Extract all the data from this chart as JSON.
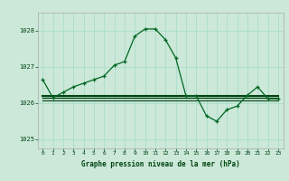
{
  "title": "Graphe pression niveau de la mer (hPa)",
  "background_color": "#cbe8d8",
  "grid_color": "#aaddcc",
  "line_color_main": "#006622",
  "line_color_flat": "#004411",
  "xlim": [
    -0.5,
    23.5
  ],
  "ylim": [
    1024.75,
    1028.5
  ],
  "yticks": [
    1025,
    1026,
    1027,
    1028
  ],
  "xticks": [
    0,
    1,
    2,
    3,
    4,
    5,
    6,
    7,
    8,
    9,
    10,
    11,
    12,
    13,
    14,
    15,
    16,
    17,
    18,
    19,
    20,
    21,
    22,
    23
  ],
  "main_series": [
    1026.65,
    1026.15,
    1026.3,
    1026.45,
    1026.55,
    1026.65,
    1026.75,
    1027.05,
    1027.15,
    1027.85,
    1028.05,
    1028.05,
    1027.75,
    1027.25,
    1026.2,
    1026.2,
    1025.65,
    1025.5,
    1025.82,
    1025.92,
    1026.22,
    1026.45,
    1026.12,
    1026.12
  ],
  "flat_series1": [
    1026.2,
    1026.2,
    1026.2,
    1026.2,
    1026.2,
    1026.2,
    1026.2,
    1026.2,
    1026.2,
    1026.2,
    1026.2,
    1026.2,
    1026.2,
    1026.2,
    1026.2,
    1026.2,
    1026.2,
    1026.2,
    1026.2,
    1026.2,
    1026.2,
    1026.2,
    1026.2,
    1026.2
  ],
  "flat_series2": [
    1026.15,
    1026.15,
    1026.15,
    1026.15,
    1026.15,
    1026.15,
    1026.15,
    1026.15,
    1026.15,
    1026.15,
    1026.15,
    1026.15,
    1026.15,
    1026.15,
    1026.15,
    1026.15,
    1026.15,
    1026.15,
    1026.15,
    1026.15,
    1026.15,
    1026.15,
    1026.15,
    1026.15
  ],
  "flat_series3": [
    1026.08,
    1026.08,
    1026.08,
    1026.08,
    1026.08,
    1026.08,
    1026.08,
    1026.08,
    1026.08,
    1026.08,
    1026.08,
    1026.08,
    1026.08,
    1026.08,
    1026.08,
    1026.08,
    1026.08,
    1026.08,
    1026.08,
    1026.08,
    1026.08,
    1026.08,
    1026.08,
    1026.08
  ]
}
